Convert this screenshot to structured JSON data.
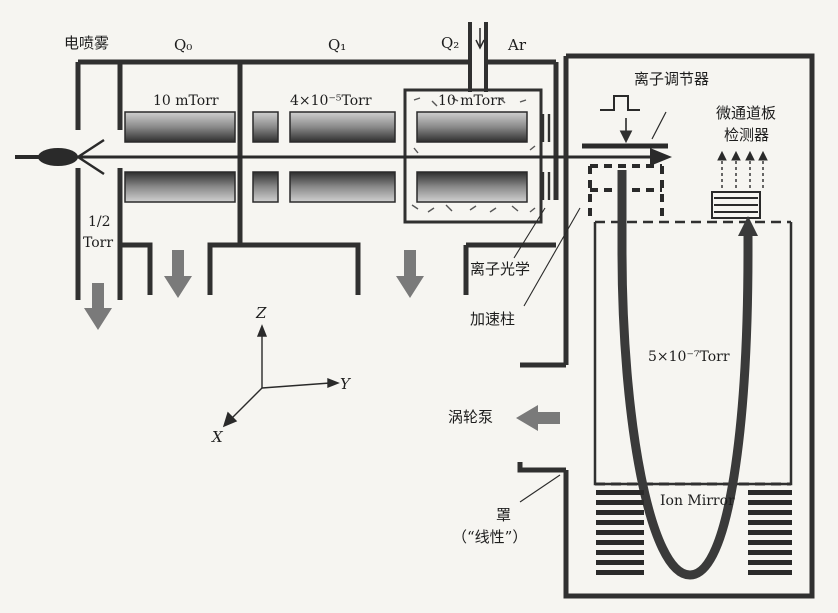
{
  "labels": {
    "electrospray": "电喷雾",
    "q0": "Q₀",
    "q1": "Q₁",
    "q2": "Q₂",
    "argon": "Ar",
    "pressure_q0": "10 mTorr",
    "pressure_q1": "4×10⁻⁵Torr",
    "pressure_q2": "10 mTorr",
    "pressure_source_value": "1/2",
    "pressure_source_unit": "Torr",
    "ion_modulator": "离子调节器",
    "mcp_detector_line1": "微通道板",
    "mcp_detector_line2": "检测器",
    "ion_optics": "离子光学",
    "accelerating_column": "加速柱",
    "pressure_tof": "5×10⁻⁷Torr",
    "turbo_pump": "涡轮泵",
    "ion_mirror": "Ion Mirror",
    "liner_line1": "罩",
    "liner_line2": "（“线性”）",
    "axis_z": "Z",
    "axis_y": "Y",
    "axis_x": "X"
  },
  "colors": {
    "outline": "#303030",
    "rod_dark": "#3c3c3c",
    "rod_light": "#c8c8c8",
    "arrow_gray": "#7a7a7a",
    "background": "#f6f5f1"
  }
}
